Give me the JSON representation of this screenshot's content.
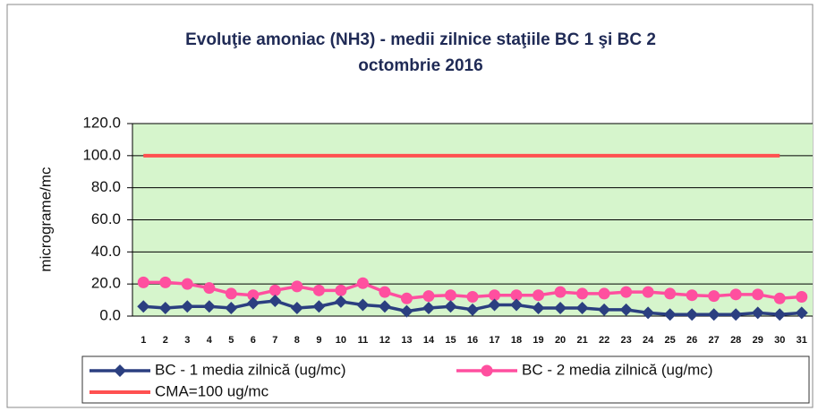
{
  "chart_data": {
    "type": "line",
    "title": "Evoluţie amoniac (NH3) - medii zilnice staţiile BC 1 şi BC 2",
    "subtitle": "octombrie 2016",
    "y_label": "micrograme/mc",
    "categories": [
      1,
      2,
      3,
      4,
      5,
      6,
      7,
      8,
      9,
      10,
      11,
      12,
      13,
      14,
      15,
      16,
      17,
      18,
      19,
      20,
      21,
      22,
      23,
      24,
      25,
      26,
      27,
      28,
      29,
      30,
      31
    ],
    "series": [
      {
        "name": "BC - 1 media zilnică (ug/mc)",
        "color": "#2b3f80",
        "marker": "diamond",
        "values": [
          6,
          5,
          6,
          6,
          5,
          8,
          9.5,
          5,
          6,
          9,
          7,
          6,
          3,
          5,
          6,
          4,
          7,
          7,
          5,
          5,
          5,
          4,
          4,
          2,
          1,
          1,
          1,
          1,
          2,
          1,
          2
        ]
      },
      {
        "name": "BC - 2 media zilnică (ug/mc)",
        "color": "#ff4f9f",
        "marker": "circle",
        "values": [
          21,
          21,
          20,
          17.5,
          14,
          13,
          16,
          18.5,
          16,
          16,
          20.5,
          15,
          11,
          12.5,
          13,
          12,
          13,
          13,
          13,
          15,
          14,
          14,
          15,
          15,
          14,
          13,
          12.5,
          13.5,
          13.5,
          11,
          12
        ]
      },
      {
        "name": "CMA=100 ug/mc",
        "color": "#ff5050",
        "marker": "none",
        "values": [
          100,
          100,
          100,
          100,
          100,
          100,
          100,
          100,
          100,
          100,
          100,
          100,
          100,
          100,
          100,
          100,
          100,
          100,
          100,
          100,
          100,
          100,
          100,
          100,
          100,
          100,
          100,
          100,
          100,
          100,
          null
        ]
      }
    ],
    "ylim": [
      0,
      120
    ],
    "yticks": [
      {
        "value": 0,
        "label": "0.0"
      },
      {
        "value": 20,
        "label": "20.0"
      },
      {
        "value": 40,
        "label": "40.0"
      },
      {
        "value": 60,
        "label": "60.0"
      },
      {
        "value": 80,
        "label": "80.0"
      },
      {
        "value": 100,
        "label": "100.0"
      },
      {
        "value": 120,
        "label": "120.0"
      }
    ],
    "grid": true,
    "legend": "bottom",
    "plot_background": "#d6f5cc"
  }
}
